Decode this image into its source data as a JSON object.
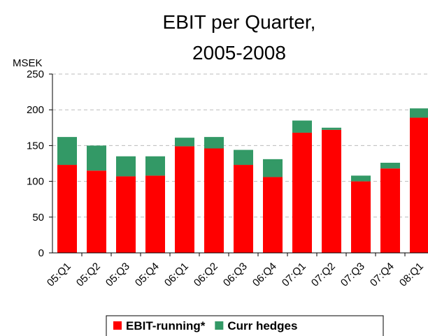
{
  "chart_data": {
    "type": "stacked_bar",
    "title": "EBIT per Quarter, 2005-2008",
    "y_label": "MSEK",
    "categories": [
      "05:Q1",
      "05:Q2",
      "05:Q3",
      "05:Q4",
      "06:Q1",
      "06:Q2",
      "06:Q3",
      "06:Q4",
      "07:Q1",
      "07:Q2",
      "07:Q3",
      "07:Q4",
      "08:Q1"
    ],
    "series": [
      {
        "name": "EBIT-running*",
        "color": "#ff0000",
        "values": [
          123,
          115,
          107,
          108,
          149,
          146,
          123,
          106,
          168,
          172,
          100,
          118,
          189
        ]
      },
      {
        "name": "Curr hedges",
        "color": "#339966",
        "values": [
          39,
          35,
          28,
          27,
          12,
          16,
          21,
          25,
          17,
          3,
          8,
          8,
          13
        ]
      }
    ],
    "ylim": [
      0,
      250
    ],
    "yticks": [
      0,
      50,
      100,
      150,
      200,
      250
    ],
    "grid": true,
    "legend": "bottom"
  }
}
